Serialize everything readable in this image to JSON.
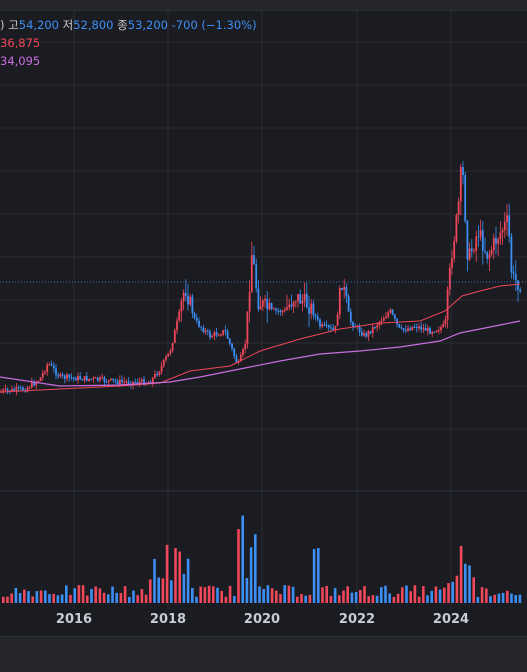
{
  "legend": {
    "open_fragment": ")",
    "high_label": "고",
    "high_value": "54,200",
    "low_label": "저",
    "low_value": "52,800",
    "close_label": "종",
    "close_value": "53,200",
    "change": "-700 (−1.30%)",
    "ma_short_value": "36,875",
    "ma_long_value": "34,095"
  },
  "colors": {
    "up": "#f0475a",
    "down": "#3c8ff5",
    "ma_short": "#f0475a",
    "ma_long": "#c86ee0",
    "background": "#1b1c21",
    "grid": "#2a2c33"
  },
  "x_axis": {
    "ticks": [
      "2016",
      "2018",
      "2020",
      "2022",
      "2024"
    ]
  },
  "chart_data": {
    "type": "candlestick",
    "x_ticks": [
      "2016",
      "2018",
      "2020",
      "2022",
      "2024"
    ],
    "last_close": 53200,
    "last_high": 54200,
    "last_low": 52800,
    "last_change": -700,
    "last_change_pct": -1.3,
    "ma_short_last": 36875,
    "ma_long_last": 34095,
    "has_volume_panel": true,
    "price_line_dotted": true,
    "grid": true
  }
}
